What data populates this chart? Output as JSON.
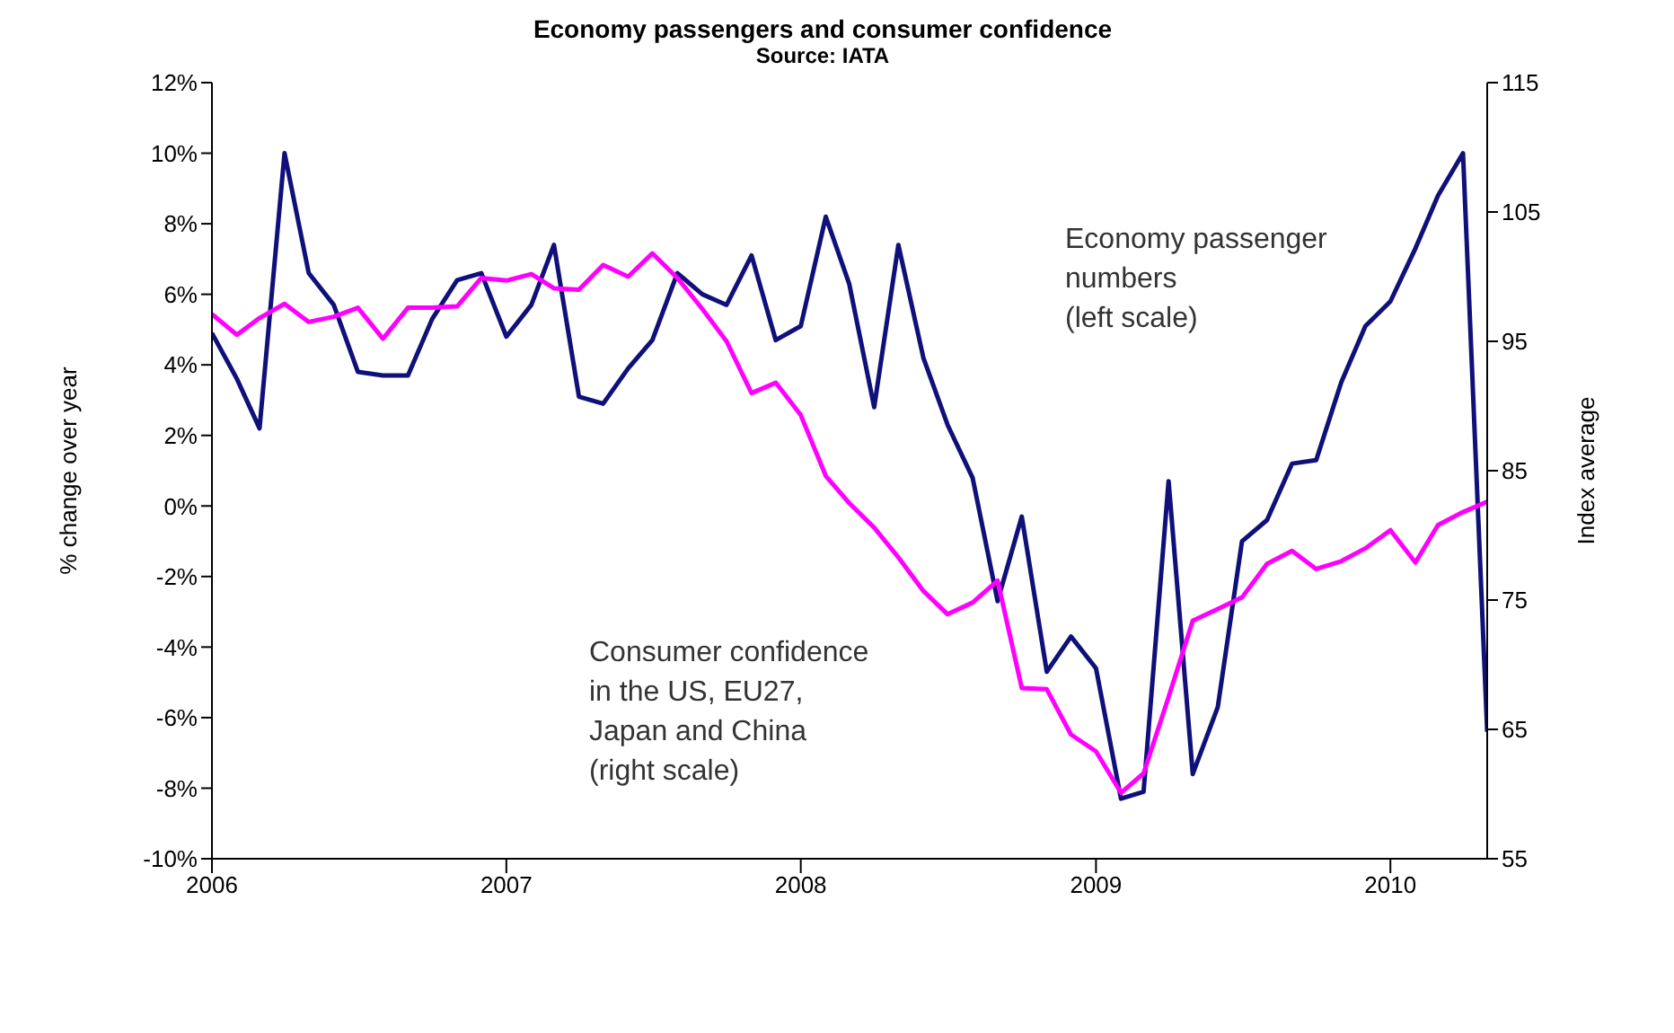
{
  "chart_data": {
    "type": "line",
    "title": "Economy passengers and consumer confidence",
    "subtitle": "Source: IATA",
    "ylabel": "% change over year",
    "y2label": "Index average",
    "x": [
      "2006-01",
      "2006-02",
      "2006-03",
      "2006-04",
      "2006-05",
      "2006-06",
      "2006-07",
      "2006-08",
      "2006-09",
      "2006-10",
      "2006-11",
      "2006-12",
      "2007-01",
      "2007-02",
      "2007-03",
      "2007-04",
      "2007-05",
      "2007-06",
      "2007-07",
      "2007-08",
      "2007-09",
      "2007-10",
      "2007-11",
      "2007-12",
      "2008-01",
      "2008-02",
      "2008-03",
      "2008-04",
      "2008-05",
      "2008-06",
      "2008-07",
      "2008-08",
      "2008-09",
      "2008-10",
      "2008-11",
      "2008-12",
      "2009-01",
      "2009-02",
      "2009-03",
      "2009-04",
      "2009-05",
      "2009-06",
      "2009-07",
      "2009-08",
      "2009-09",
      "2009-10",
      "2009-11",
      "2009-12",
      "2010-01",
      "2010-02",
      "2010-03",
      "2010-04",
      "2010-05"
    ],
    "series": [
      {
        "name": "Economy passenger numbers (left scale)",
        "color": "#10107a",
        "values": [
          4.9,
          3.6,
          2.2,
          10.0,
          6.6,
          5.7,
          3.8,
          3.7,
          3.7,
          5.3,
          6.4,
          6.6,
          4.8,
          5.7,
          7.4,
          3.1,
          2.9,
          3.9,
          4.7,
          6.6,
          6.0,
          5.7,
          7.1,
          4.7,
          5.1,
          8.2,
          6.3,
          2.8,
          7.4,
          4.2,
          2.3,
          0.8,
          -2.7,
          -0.3,
          -4.7,
          -3.7,
          -4.6,
          -8.3,
          -8.1,
          0.7,
          -7.6,
          -5.7,
          -1.0,
          -0.4,
          1.2,
          1.3,
          3.5,
          5.1,
          5.8,
          7.3,
          8.8,
          10.0,
          -6.4
        ]
      },
      {
        "name": "Consumer confidence in the US, EU27, Japan and China (right scale)",
        "color": "#ff00ff",
        "axis": "y2",
        "values": [
          97.1,
          95.5,
          96.8,
          97.9,
          96.5,
          96.9,
          97.6,
          95.2,
          97.6,
          97.6,
          97.7,
          99.9,
          99.7,
          100.2,
          99.1,
          99.0,
          100.9,
          100.0,
          101.8,
          99.9,
          97.5,
          95.0,
          91.0,
          91.8,
          89.3,
          84.6,
          82.5,
          80.6,
          78.3,
          75.7,
          73.9,
          74.8,
          76.5,
          68.2,
          68.1,
          64.6,
          63.3,
          60.1,
          61.6,
          67.5,
          73.4,
          74.3,
          75.2,
          77.8,
          78.8,
          77.4,
          78.0,
          79.0,
          80.4,
          77.9,
          80.8,
          81.8,
          82.6
        ]
      }
    ],
    "xlim": [
      "2006-01",
      "2010-05"
    ],
    "xticks": [
      {
        "value": "2006-01",
        "label": "2006"
      },
      {
        "value": "2007-01",
        "label": "2007"
      },
      {
        "value": "2008-01",
        "label": "2008"
      },
      {
        "value": "2009-01",
        "label": "2009"
      },
      {
        "value": "2010-01",
        "label": "2010"
      }
    ],
    "ylim": [
      -10,
      12
    ],
    "yticks": [
      {
        "value": -10,
        "label": "-10%"
      },
      {
        "value": -8,
        "label": "-8%"
      },
      {
        "value": -6,
        "label": "-6%"
      },
      {
        "value": -4,
        "label": "-4%"
      },
      {
        "value": -2,
        "label": "-2%"
      },
      {
        "value": 0,
        "label": "0%"
      },
      {
        "value": 2,
        "label": "2%"
      },
      {
        "value": 4,
        "label": "4%"
      },
      {
        "value": 6,
        "label": "6%"
      },
      {
        "value": 8,
        "label": "8%"
      },
      {
        "value": 10,
        "label": "10%"
      },
      {
        "value": 12,
        "label": "12%"
      }
    ],
    "y2lim": [
      55,
      115
    ],
    "y2ticks": [
      55,
      65,
      75,
      85,
      95,
      105,
      115
    ],
    "marker": "none",
    "line_style": "solid"
  }
}
